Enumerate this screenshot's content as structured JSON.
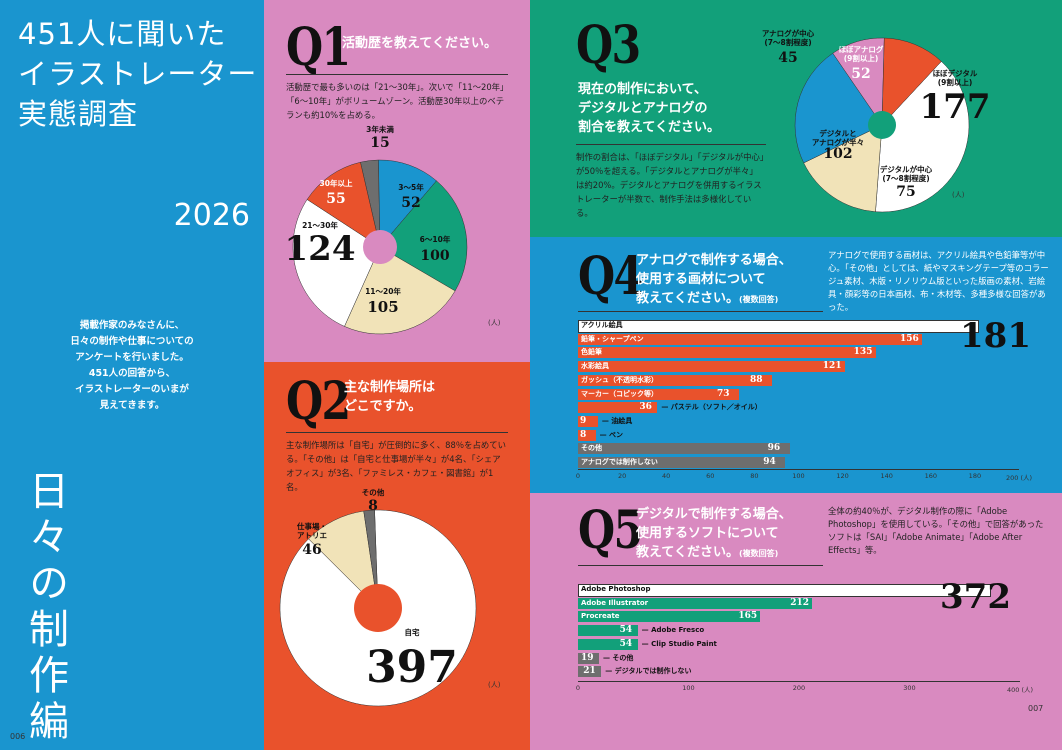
{
  "left": {
    "title_lines": [
      "451人に聞いた",
      "イラストレーター",
      "実態調査"
    ],
    "year": "2026",
    "intro_lines": [
      "掲載作家のみなさんに、",
      "日々の制作や仕事についての",
      "アンケートを行いました。",
      "451人の回答から、",
      "イラストレーターのいまが",
      "見えてきます。"
    ],
    "section": "日々の制作編",
    "page_left": "006"
  },
  "page_right": "007",
  "unit": "(人)",
  "q1": {
    "num": "Q1",
    "question": "活動歴を教えてください。",
    "body": "活動歴で最も多いのは「21〜30年」。次いで「11〜20年」「6〜10年」がボリュームゾーン。活動歴30年以上のベテランも約10%を占める。"
  },
  "q2": {
    "num": "Q2",
    "question_lines": [
      "主な制作場所は",
      "どこですか。"
    ],
    "body": "主な制作場所は「自宅」が圧倒的に多く、88％を占めている。「その他」は「自宅と仕事場が半々」が4名、「シェアオフィス」が3名、「ファミレス・カフェ・図書館」が1名。"
  },
  "q3": {
    "num": "Q3",
    "question_lines": [
      "現在の制作において、",
      "デジタルとアナログの",
      "割合を教えてください。"
    ],
    "body": "制作の割合は、「ほぼデジタル」「デジタルが中心」が50％を超える。「デジタルとアナログが半々」は約20%。デジタルとアナログを併用するイラストレーターが半数で、制作手法は多様化している。"
  },
  "q4": {
    "num": "Q4",
    "question_lines": [
      "アナログで制作する場合、",
      "使用する画材について"
    ],
    "question_last": "教えてください。",
    "note": "(複数回答)",
    "body": "アナログで使用する画材は、アクリル絵具や色鉛筆等が中心。「その他」としては、紙やマスキングテープ等のコラージュ素材、木版・リノリウム版といった版画の素材、岩絵具・顔彩等の日本画材、布・木材等、多種多様な回答があった。"
  },
  "q5": {
    "num": "Q5",
    "question_lines": [
      "デジタルで制作する場合、",
      "使用するソフトについて"
    ],
    "question_last": "教えてください。",
    "note": "(複数回答)",
    "body": "全体の約40％が、デジタル制作の際に「Adobe Photoshop」を使用している。「その他」で回答があったソフトは「SAI」「Adobe Animate」「Adobe After Effects」等。"
  },
  "chart_data": [
    {
      "id": "q1",
      "type": "pie",
      "unit": "(人)",
      "slices": [
        {
          "label": "3年未満",
          "value": 15,
          "color": "#6e6e6e"
        },
        {
          "label": "3〜5年",
          "value": 52,
          "color": "#1a95cf"
        },
        {
          "label": "6〜10年",
          "value": 100,
          "color": "#12a07a"
        },
        {
          "label": "11〜20年",
          "value": 105,
          "color": "#f1e3b8"
        },
        {
          "label": "21〜30年",
          "value": 124,
          "color": "#ffffff"
        },
        {
          "label": "30年以上",
          "value": 55,
          "color": "#e9522c"
        }
      ]
    },
    {
      "id": "q2",
      "type": "pie",
      "unit": "(人)",
      "slices": [
        {
          "label": "自宅",
          "value": 397,
          "color": "#ffffff"
        },
        {
          "label": "仕事場・アトリエ",
          "value": 46,
          "color": "#f1e3b8"
        },
        {
          "label": "その他",
          "value": 8,
          "color": "#6e6e6e"
        }
      ]
    },
    {
      "id": "q3",
      "type": "pie",
      "unit": "(人)",
      "slices": [
        {
          "label": "ほぼデジタル(9割以上)",
          "value": 177,
          "color": "#ffffff"
        },
        {
          "label": "デジタルが中心(7〜8割程度)",
          "value": 75,
          "color": "#f1e3b8"
        },
        {
          "label": "デジタルとアナログが半々",
          "value": 102,
          "color": "#1a95cf"
        },
        {
          "label": "アナログが中心(7〜8割程度)",
          "value": 45,
          "color": "#d98ac0"
        },
        {
          "label": "ほぼアナログ(9割以上)",
          "value": 52,
          "color": "#e9522c"
        }
      ]
    },
    {
      "id": "q4",
      "type": "bar",
      "orientation": "horizontal",
      "xlim": [
        0,
        200
      ],
      "xticks": [
        0,
        20,
        40,
        60,
        80,
        100,
        120,
        140,
        160,
        180,
        200
      ],
      "xtick_last": "200 (人)",
      "categories": [
        "アクリル絵具",
        "鉛筆・シャープペン",
        "色鉛筆",
        "水彩絵具",
        "ガッシュ（不透明水彩）",
        "マーカー（コピック等）",
        "パステル（ソフト／オイル）",
        "油絵具",
        "ペン",
        "その他",
        "アナログでは制作しない"
      ],
      "values": [
        181,
        156,
        135,
        121,
        88,
        73,
        36,
        9,
        8,
        96,
        94
      ],
      "colors": [
        "#ffffff",
        "#e9522c",
        "#e9522c",
        "#e9522c",
        "#e9522c",
        "#e9522c",
        "#e9522c",
        "#e9522c",
        "#e9522c",
        "#6e6e6e",
        "#6e6e6e"
      ]
    },
    {
      "id": "q5",
      "type": "bar",
      "orientation": "horizontal",
      "xlim": [
        0,
        400
      ],
      "xticks": [
        0,
        100,
        200,
        300,
        400
      ],
      "xtick_last": "400 (人)",
      "categories": [
        "Adobe Photoshop",
        "Adobe Illustrator",
        "Procreate",
        "Adobe Fresco",
        "Clip Studio Paint",
        "その他",
        "デジタルでは制作しない"
      ],
      "values": [
        372,
        212,
        165,
        54,
        54,
        19,
        21
      ],
      "colors": [
        "#ffffff",
        "#12a07a",
        "#12a07a",
        "#12a07a",
        "#12a07a",
        "#6e6e6e",
        "#6e6e6e"
      ]
    }
  ]
}
